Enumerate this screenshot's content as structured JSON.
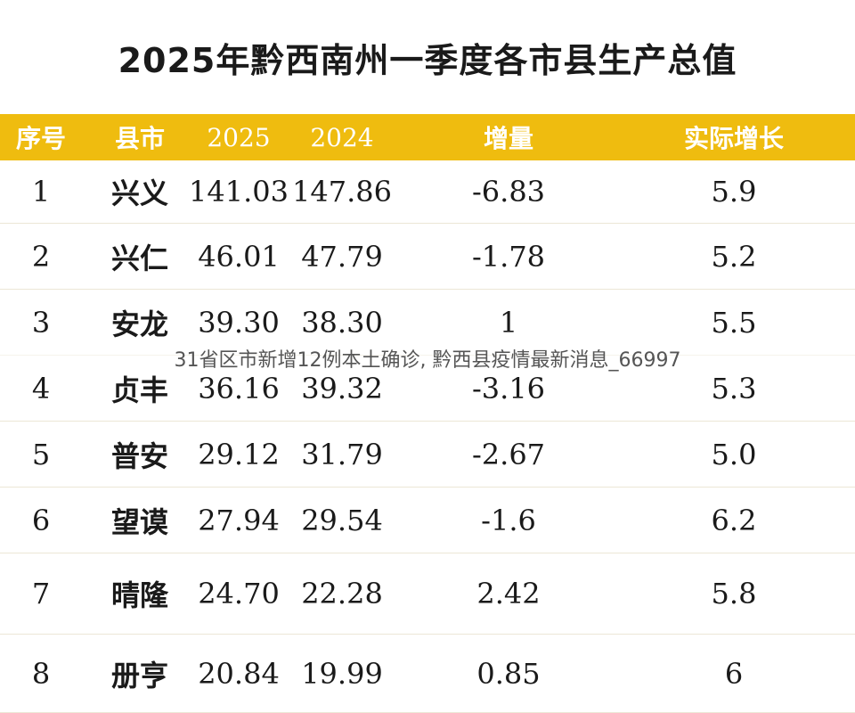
{
  "title": "2025年黔西南州一季度各市县生产总值",
  "columns": [
    "序号",
    "县市",
    "2025",
    "2024",
    "增量",
    "实际增长"
  ],
  "rows": [
    {
      "rank": "1",
      "county": "兴义",
      "y2025": "141.03",
      "y2024": "147.86",
      "increment": "-6.83",
      "growth": "5.9"
    },
    {
      "rank": "2",
      "county": "兴仁",
      "y2025": "46.01",
      "y2024": "47.79",
      "increment": "-1.78",
      "growth": "5.2"
    },
    {
      "rank": "3",
      "county": "安龙",
      "y2025": "39.30",
      "y2024": "38.30",
      "increment": "1",
      "growth": "5.5"
    },
    {
      "rank": "4",
      "county": "贞丰",
      "y2025": "36.16",
      "y2024": "39.32",
      "increment": "-3.16",
      "growth": "5.3"
    },
    {
      "rank": "5",
      "county": "普安",
      "y2025": "29.12",
      "y2024": "31.79",
      "increment": "-2.67",
      "growth": "5.0"
    },
    {
      "rank": "6",
      "county": "望谟",
      "y2025": "27.94",
      "y2024": "29.54",
      "increment": "-1.6",
      "growth": "6.2"
    },
    {
      "rank": "7",
      "county": "晴隆",
      "y2025": "24.70",
      "y2024": "22.28",
      "increment": "2.42",
      "growth": "5.8"
    },
    {
      "rank": "8",
      "county": "册亨",
      "y2025": "20.84",
      "y2024": "19.99",
      "increment": "0.85",
      "growth": "6"
    }
  ],
  "watermark": "31省区市新增12例本土确诊, 黔西县疫情最新消息_66997",
  "colors": {
    "header_bg": "#efbc0f",
    "header_text": "#ffffff",
    "text": "#1a1a1a"
  }
}
